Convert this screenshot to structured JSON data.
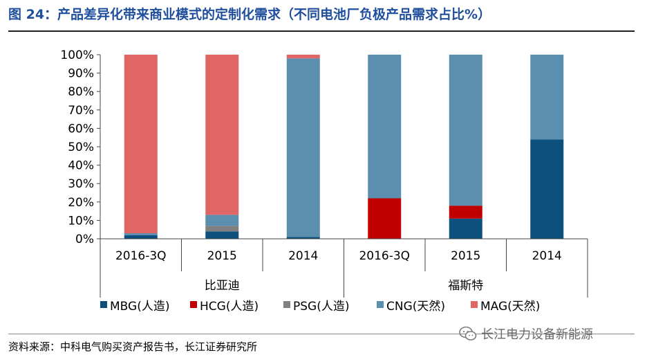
{
  "figure": {
    "title": "图 24：产品差异化带来商业模式的定制化需求（不同电池厂负极产品需求占比%）",
    "source": "资料来源：中科电气购买资产报告书，长江证券研究所",
    "watermark": "长江电力设备新能源",
    "watermark_icon": "wechat-icon"
  },
  "chart_data": {
    "type": "bar",
    "stacked": true,
    "title": "",
    "xlabel": "",
    "ylabel": "",
    "ylim": [
      0,
      100
    ],
    "y_ticks": [
      "0%",
      "10%",
      "20%",
      "30%",
      "40%",
      "50%",
      "60%",
      "70%",
      "80%",
      "90%",
      "100%"
    ],
    "categories": [
      "2016-3Q",
      "2015",
      "2014",
      "2016-3Q",
      "2015",
      "2014"
    ],
    "groups": [
      {
        "label": "比亚迪",
        "categories": [
          0,
          1,
          2
        ]
      },
      {
        "label": "福斯特",
        "categories": [
          3,
          4,
          5
        ]
      }
    ],
    "series": [
      {
        "name": "MBG(人造)",
        "color": "#0d4f7d",
        "values": [
          2,
          4,
          1,
          0,
          11,
          54
        ]
      },
      {
        "name": "HCG(人造)",
        "color": "#c00000",
        "values": [
          0,
          0,
          0,
          22,
          7,
          0
        ]
      },
      {
        "name": "PSG(人造)",
        "color": "#808080",
        "values": [
          0,
          3,
          0,
          0,
          0,
          0
        ]
      },
      {
        "name": "CNG(天然)",
        "color": "#5b8fb0",
        "values": [
          1,
          6,
          97,
          78,
          82,
          46
        ]
      },
      {
        "name": "MAG(天然)",
        "color": "#e06666",
        "values": [
          97,
          87,
          2,
          0,
          0,
          0
        ]
      }
    ],
    "legend_position": "bottom",
    "grid": false
  }
}
